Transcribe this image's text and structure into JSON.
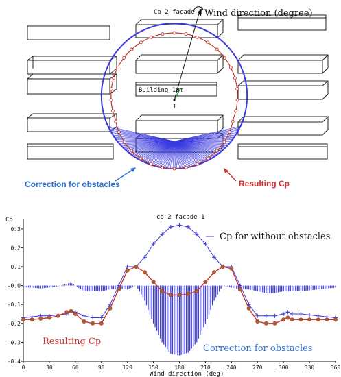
{
  "top_diagram": {
    "panel_label": "Cp 2 facade 1",
    "building_label": "Building 10m",
    "center_marker": "1",
    "annotation_wind": "Wind direction (degree)",
    "annotation_correction": "Correction for obstacles",
    "annotation_resulting": "Resulting Cp",
    "colors": {
      "without_obstacles": "#3a3adf",
      "resulting": "#c0392b",
      "correction_label": "#2b6fd6",
      "resulting_label": "#d32f2f"
    }
  },
  "chart_data": {
    "type": "line",
    "title": "cp 2 facade 1",
    "ylabel": "Cp",
    "xlabel": "Wind direction (deg)",
    "xlim": [
      0,
      360
    ],
    "ylim": [
      -0.4,
      0.35
    ],
    "xticks": [
      "0",
      "30",
      "60",
      "90",
      "120",
      "150",
      "180",
      "210",
      "240",
      "270",
      "300",
      "330",
      "360"
    ],
    "yticks": [
      "0.3",
      "0.2",
      "0.1",
      "-0.0",
      "-0.1",
      "-0.2",
      "-0.3",
      "-0.4"
    ],
    "grid": false,
    "x": [
      0,
      10,
      20,
      30,
      40,
      50,
      55,
      60,
      70,
      80,
      90,
      100,
      110,
      120,
      130,
      140,
      150,
      160,
      170,
      180,
      190,
      200,
      210,
      220,
      230,
      240,
      250,
      260,
      270,
      280,
      290,
      300,
      305,
      310,
      320,
      330,
      340,
      350,
      360
    ],
    "series": [
      {
        "name": "Cp for without obstacles",
        "color": "#3a3adf",
        "marker": "plus",
        "values": [
          -0.17,
          -0.165,
          -0.16,
          -0.16,
          -0.155,
          -0.15,
          -0.135,
          -0.14,
          -0.16,
          -0.17,
          -0.17,
          -0.1,
          0.0,
          0.1,
          0.1,
          0.15,
          0.22,
          0.27,
          0.31,
          0.32,
          0.31,
          0.27,
          0.22,
          0.15,
          0.1,
          0.1,
          0.0,
          -0.1,
          -0.16,
          -0.16,
          -0.16,
          -0.15,
          -0.14,
          -0.15,
          -0.15,
          -0.155,
          -0.16,
          -0.165,
          -0.17
        ]
      },
      {
        "name": "Resulting Cp",
        "color": "#c0392b",
        "marker": "circle",
        "values": [
          -0.18,
          -0.18,
          -0.175,
          -0.17,
          -0.16,
          -0.14,
          -0.135,
          -0.15,
          -0.19,
          -0.2,
          -0.2,
          -0.12,
          -0.02,
          0.08,
          0.1,
          0.07,
          0.02,
          -0.03,
          -0.05,
          -0.05,
          -0.045,
          -0.03,
          0.02,
          0.07,
          0.1,
          0.09,
          -0.02,
          -0.12,
          -0.19,
          -0.2,
          -0.2,
          -0.18,
          -0.17,
          -0.18,
          -0.18,
          -0.18,
          -0.18,
          -0.18,
          -0.18
        ]
      },
      {
        "name": "Correction for obstacles",
        "color": "#3a3adf",
        "marker": "bars",
        "values": [
          -0.01,
          -0.01,
          -0.015,
          -0.01,
          -0.005,
          0.01,
          0.015,
          0.0,
          -0.03,
          -0.03,
          -0.03,
          -0.02,
          -0.02,
          -0.02,
          0.0,
          -0.08,
          -0.2,
          -0.3,
          -0.36,
          -0.37,
          -0.355,
          -0.3,
          -0.2,
          -0.08,
          0.0,
          -0.01,
          -0.02,
          -0.02,
          -0.03,
          -0.04,
          -0.04,
          -0.03,
          -0.03,
          -0.03,
          -0.03,
          -0.025,
          -0.02,
          -0.015,
          -0.01
        ]
      }
    ],
    "annotations": [
      {
        "text": "Cp for without obstacles",
        "color": "#1a1a1a"
      },
      {
        "text": "Resulting Cp",
        "color": "#d32f2f"
      },
      {
        "text": "Correction for obstacles",
        "color": "#2b6fd6"
      }
    ]
  }
}
